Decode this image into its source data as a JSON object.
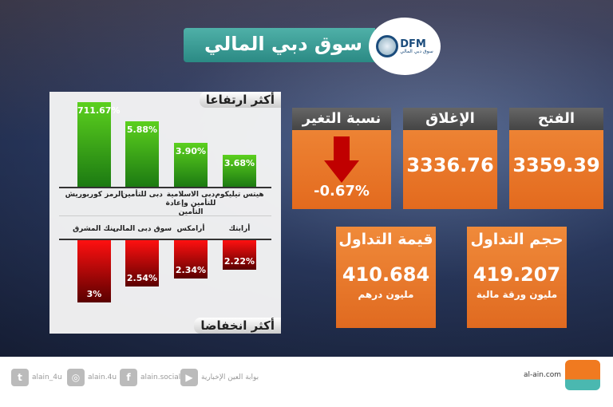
{
  "title": "سوق دبي المالي",
  "logo": {
    "text": "DFM",
    "sub": "سوق دبي المالي"
  },
  "gainers": {
    "title": "أكثر ارتفاعا",
    "items": [
      {
        "name": "الرمز كوربوريش",
        "value": "711.67%"
      },
      {
        "name": "دبى للتأمين",
        "value": "5.88%"
      },
      {
        "name": "دبى الاسلامية للتأمين وإعادة التأمين",
        "value": "3.90%"
      },
      {
        "name": "هيتس تيليكوم",
        "value": "3.68%"
      }
    ]
  },
  "losers": {
    "title": "أكثر انخفاضا",
    "items": [
      {
        "name": "بنك المشرق",
        "value": "3%"
      },
      {
        "name": "سوق دبى المالى",
        "value": "2.54%"
      },
      {
        "name": "أرامكس",
        "value": "2.34%"
      },
      {
        "name": "أرابتك",
        "value": "2.22%"
      }
    ]
  },
  "cards": {
    "open": {
      "label": "الفتح",
      "value": "3359.39"
    },
    "close": {
      "label": "الإغلاق",
      "value": "3336.76"
    },
    "change": {
      "label": "نسبة التغير",
      "value": "-0.67%"
    },
    "volume": {
      "label": "حجم التداول",
      "value": "419.207",
      "unit": "مليون ورقة مالية"
    },
    "turnover": {
      "label": "قيمة التداول",
      "value": "410.684",
      "unit": "مليون درهم"
    }
  },
  "colors": {
    "orange": "#e8742a",
    "green": "#3aa81a",
    "red": "#d00000",
    "teal": "#3a9c96"
  },
  "footer": {
    "twitter": "alain_4u",
    "instagram": "alain.4u",
    "facebook": "alain.social",
    "youtube": "بوابة العين الإخبارية",
    "site": "al-ain.com"
  }
}
